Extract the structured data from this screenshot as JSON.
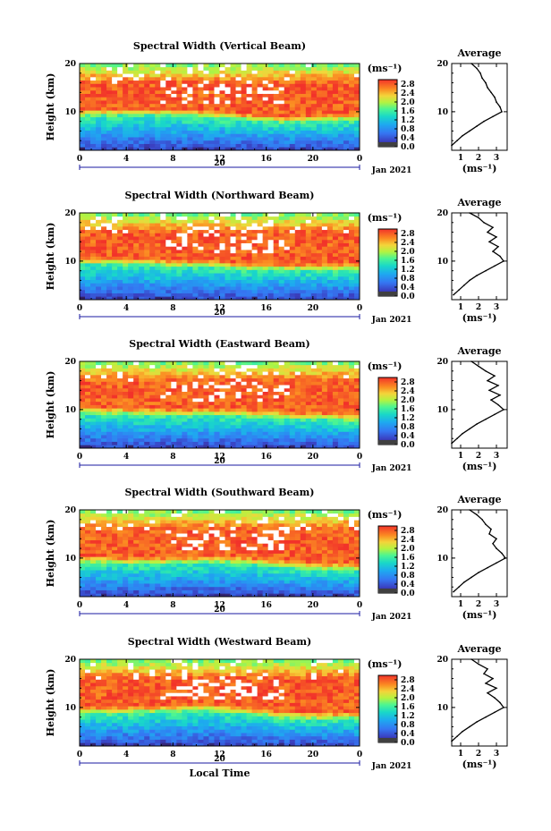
{
  "chart_data": [
    {
      "type": "heatmap",
      "title": "Spectral Width (Vertical Beam)",
      "ylabel": "Height (km)",
      "xlabel": "",
      "x_ticks": [
        "0",
        "4",
        "8",
        "12",
        "16",
        "20",
        "0"
      ],
      "y_ticks": [
        "10",
        "20"
      ],
      "xlim": [
        0,
        24
      ],
      "ylim": [
        2,
        20
      ],
      "date_marker": "20",
      "date_label": "Jan 2021",
      "colorbar": {
        "unit": "(ms⁻¹)",
        "ticks": [
          "0.0",
          "0.4",
          "0.8",
          "1.2",
          "1.6",
          "2.0",
          "2.4",
          "2.8"
        ],
        "min": 0.0,
        "max": 3.0
      },
      "average": {
        "title": "Average",
        "xlabel": "(ms⁻¹)",
        "x_ticks": [
          "1",
          "2",
          "3"
        ],
        "y_ticks": [
          "10",
          "20"
        ],
        "height": [
          3,
          4,
          5,
          6,
          7,
          8,
          9,
          10,
          11,
          12,
          13,
          14,
          15,
          16,
          17,
          18,
          19,
          20
        ],
        "width": [
          0.5,
          0.8,
          1.1,
          1.5,
          1.9,
          2.3,
          2.8,
          3.3,
          3.2,
          3.0,
          2.9,
          2.7,
          2.5,
          2.4,
          2.2,
          2.1,
          1.9,
          1.6
        ]
      }
    },
    {
      "type": "heatmap",
      "title": "Spectral Width (Northward Beam)",
      "ylabel": "Height (km)",
      "xlabel": "",
      "x_ticks": [
        "0",
        "4",
        "8",
        "12",
        "16",
        "20",
        "0"
      ],
      "y_ticks": [
        "10",
        "20"
      ],
      "xlim": [
        0,
        24
      ],
      "ylim": [
        2,
        20
      ],
      "date_marker": "20",
      "date_label": "Jan 2021",
      "colorbar": {
        "unit": "(ms⁻¹)",
        "ticks": [
          "0.0",
          "0.4",
          "0.8",
          "1.2",
          "1.6",
          "2.0",
          "2.4",
          "2.8"
        ],
        "min": 0.0,
        "max": 3.0
      },
      "average": {
        "title": "Average",
        "xlabel": "(ms⁻¹)",
        "x_ticks": [
          "1",
          "2",
          "3"
        ],
        "y_ticks": [
          "10",
          "20"
        ],
        "height": [
          3,
          4,
          5,
          6,
          7,
          8,
          9,
          10,
          11,
          12,
          13,
          14,
          15,
          16,
          17,
          18,
          19,
          20
        ],
        "width": [
          0.6,
          0.9,
          1.2,
          1.5,
          1.9,
          2.4,
          2.9,
          3.4,
          3.2,
          2.8,
          3.1,
          2.6,
          3.0,
          2.5,
          2.8,
          2.3,
          2.0,
          1.5
        ]
      }
    },
    {
      "type": "heatmap",
      "title": "Spectral Width (Eastward Beam)",
      "ylabel": "Height (km)",
      "xlabel": "",
      "x_ticks": [
        "0",
        "4",
        "8",
        "12",
        "16",
        "20",
        "0"
      ],
      "y_ticks": [
        "10",
        "20"
      ],
      "xlim": [
        0,
        24
      ],
      "ylim": [
        2,
        20
      ],
      "date_marker": "20",
      "date_label": "Jan 2021",
      "colorbar": {
        "unit": "(ms⁻¹)",
        "ticks": [
          "0.0",
          "0.4",
          "0.8",
          "1.2",
          "1.6",
          "2.0",
          "2.4",
          "2.8"
        ],
        "min": 0.0,
        "max": 3.0
      },
      "average": {
        "title": "Average",
        "xlabel": "(ms⁻¹)",
        "x_ticks": [
          "1",
          "2",
          "3"
        ],
        "y_ticks": [
          "10",
          "20"
        ],
        "height": [
          3,
          4,
          5,
          6,
          7,
          8,
          9,
          10,
          11,
          12,
          13,
          14,
          15,
          16,
          17,
          18,
          19,
          20
        ],
        "width": [
          0.5,
          0.8,
          1.1,
          1.5,
          1.9,
          2.4,
          2.9,
          3.4,
          3.1,
          2.7,
          3.2,
          2.6,
          3.1,
          2.5,
          2.9,
          2.4,
          2.0,
          1.6
        ]
      }
    },
    {
      "type": "heatmap",
      "title": "Spectral Width (Southward Beam)",
      "ylabel": "Height (km)",
      "xlabel": "",
      "x_ticks": [
        "0",
        "4",
        "8",
        "12",
        "16",
        "20",
        "0"
      ],
      "y_ticks": [
        "10",
        "20"
      ],
      "xlim": [
        0,
        24
      ],
      "ylim": [
        2,
        20
      ],
      "date_marker": "20",
      "date_label": "Jan 2021",
      "colorbar": {
        "unit": "(ms⁻¹)",
        "ticks": [
          "0.0",
          "0.4",
          "0.8",
          "1.2",
          "1.6",
          "2.0",
          "2.4",
          "2.8"
        ],
        "min": 0.0,
        "max": 3.0
      },
      "average": {
        "title": "Average",
        "xlabel": "(ms⁻¹)",
        "x_ticks": [
          "1",
          "2",
          "3"
        ],
        "y_ticks": [
          "10",
          "20"
        ],
        "height": [
          3,
          4,
          5,
          6,
          7,
          8,
          9,
          10,
          11,
          12,
          13,
          14,
          15,
          16,
          17,
          18,
          19,
          20
        ],
        "width": [
          0.6,
          0.9,
          1.2,
          1.6,
          2.0,
          2.5,
          3.0,
          3.5,
          3.3,
          3.0,
          2.8,
          3.0,
          2.6,
          2.7,
          2.4,
          2.2,
          1.9,
          1.5
        ]
      }
    },
    {
      "type": "heatmap",
      "title": "Spectral Width (Westward Beam)",
      "ylabel": "Height (km)",
      "xlabel": "Local Time",
      "x_ticks": [
        "0",
        "4",
        "8",
        "12",
        "16",
        "20",
        "0"
      ],
      "y_ticks": [
        "10",
        "20"
      ],
      "xlim": [
        0,
        24
      ],
      "ylim": [
        2,
        20
      ],
      "date_marker": "20",
      "date_label": "Jan 2021",
      "colorbar": {
        "unit": "(ms⁻¹)",
        "ticks": [
          "0.0",
          "0.4",
          "0.8",
          "1.2",
          "1.6",
          "2.0",
          "2.4",
          "2.8"
        ],
        "min": 0.0,
        "max": 3.0
      },
      "average": {
        "title": "Average",
        "xlabel": "(ms⁻¹)",
        "x_ticks": [
          "1",
          "2",
          "3"
        ],
        "y_ticks": [
          "10",
          "20"
        ],
        "height": [
          3,
          4,
          5,
          6,
          7,
          8,
          9,
          10,
          11,
          12,
          13,
          14,
          15,
          16,
          17,
          18,
          19,
          20
        ],
        "width": [
          0.5,
          0.8,
          1.1,
          1.5,
          1.9,
          2.4,
          2.9,
          3.4,
          3.2,
          2.9,
          2.5,
          3.0,
          2.4,
          2.8,
          2.3,
          2.5,
          2.0,
          1.6
        ]
      }
    }
  ]
}
